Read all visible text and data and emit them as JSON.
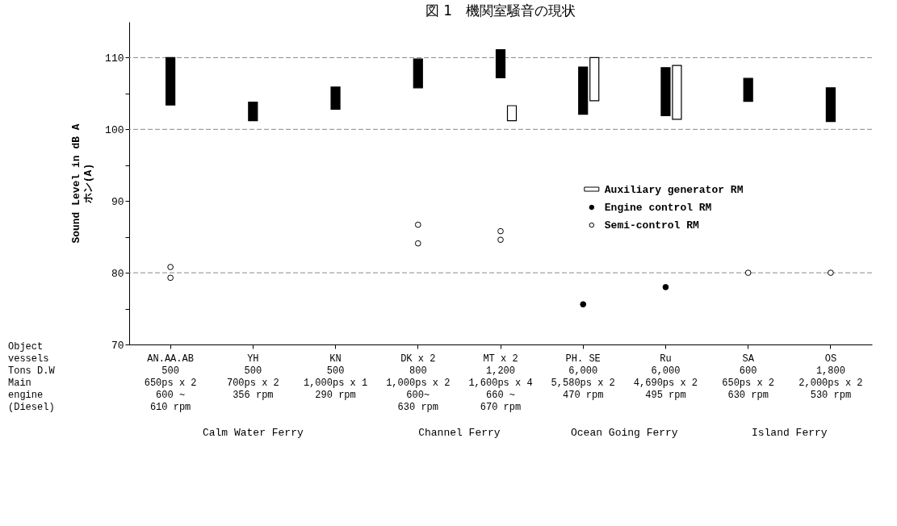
{
  "chart_data": {
    "type": "bar",
    "title": "図 1　機関室騒音の現状",
    "ylabel": "Sound Level in  dB A\nホン(A)",
    "categories": [
      "AN.AA.AB\n500\n650ps x 2\n600 ~\n610 rpm",
      "YH\n500\n700ps x 2\n356 rpm",
      "KN\n500\n1,000ps x 1\n290 rpm",
      "DK x 2\n800\n1,000ps x 2\n600~\n630 rpm",
      "MT x 2\n1,200\n1,600ps x 4\n660 ~\n670 rpm",
      "PH. SE\n6,000\n5,580ps x 2\n470 rpm",
      "Ru\n6,000\n4,690ps x 2\n495 rpm",
      "SA\n600\n650ps x 2\n630 rpm",
      "OS\n1,800\n2,000ps x 2\n530 rpm"
    ],
    "series": [
      {
        "color": "#000000",
        "base": [
          103.4,
          101.2,
          102.8,
          105.8,
          107.2,
          102.1,
          101.9,
          103.9,
          101.1
        ],
        "values": [
          6.6,
          2.6,
          3.1,
          4.0,
          3.9,
          6.6,
          6.7,
          3.2,
          4.7
        ]
      },
      {
        "name": "Auxiliary generator RM",
        "color": "#ffffff",
        "base": [
          null,
          null,
          null,
          null,
          101.2,
          104.0,
          101.4,
          null,
          null
        ],
        "values": [
          null,
          null,
          null,
          null,
          2.1,
          6.0,
          7.5,
          null,
          null
        ]
      },
      {
        "type": "scatter",
        "name": "Engine control RM",
        "color": "#000000",
        "x": [
          "PH. SE\n6,000\n5,580ps x 2\n470 rpm",
          "Ru\n6,000\n4,690ps x 2\n495 rpm"
        ],
        "values": [
          75.6,
          78.0
        ]
      },
      {
        "type": "scatter",
        "name": "Semi-control RM",
        "color": "#ffffff",
        "x": [
          "AN.AA.AB\n500\n650ps x 2\n600 ~\n610 rpm",
          "AN.AA.AB\n500\n650ps x 2\n600 ~\n610 rpm",
          "DK x 2\n800\n1,000ps x 2\n600~\n630 rpm",
          "DK x 2\n800\n1,000ps x 2\n600~\n630 rpm",
          "MT x 2\n1,200\n1,600ps x 4\n660 ~\n670 rpm",
          "MT x 2\n1,200\n1,600ps x 4\n660 ~\n670 rpm",
          "SA\n600\n650ps x 2\n630 rpm",
          "OS\n1,800\n2,000ps x 2\n530 rpm"
        ],
        "values": [
          80.8,
          79.3,
          86.7,
          84.1,
          85.8,
          84.6,
          80.0,
          80.0
        ]
      }
    ],
    "ylim": [
      70,
      115
    ],
    "yticks": [
      70,
      {
        "value": 75,
        "label": null
      },
      80,
      {
        "value": 85,
        "label": null
      },
      90,
      {
        "value": 95,
        "label": null
      },
      100,
      {
        "value": 105,
        "label": null
      },
      110
    ],
    "ref_lines": [
      {
        "axis": "y",
        "value": 80,
        "color": "#888888",
        "line_style": "dashed"
      },
      {
        "axis": "y",
        "value": 100,
        "color": "#888888",
        "line_style": "dashed"
      },
      {
        "axis": "y",
        "value": 110,
        "color": "#888888",
        "line_style": "dashed"
      }
    ],
    "marker": "circle",
    "legend": "right",
    "annotations": [
      "Object\nvessels",
      "Tons D.W",
      "Main\nengine\n(Diesel)",
      "Calm Water Ferry",
      "Channel Ferry",
      "Ocean Going Ferry",
      "Island Ferry"
    ]
  }
}
